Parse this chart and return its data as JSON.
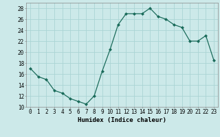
{
  "x": [
    0,
    1,
    2,
    3,
    4,
    5,
    6,
    7,
    8,
    9,
    10,
    11,
    12,
    13,
    14,
    15,
    16,
    17,
    18,
    19,
    20,
    21,
    22,
    23
  ],
  "y": [
    17,
    15.5,
    15,
    13,
    12.5,
    11.5,
    11,
    10.5,
    12,
    16.5,
    20.5,
    25,
    27,
    27,
    27,
    28,
    26.5,
    26,
    25,
    24.5,
    22,
    22,
    23,
    18.5
  ],
  "line_color": "#1a6b5a",
  "marker": "D",
  "marker_size": 2.0,
  "bg_color": "#cce9e9",
  "grid_color": "#aad4d4",
  "xlabel": "Humidex (Indice chaleur)",
  "xlim": [
    -0.5,
    23.5
  ],
  "ylim": [
    10,
    29
  ],
  "yticks": [
    10,
    12,
    14,
    16,
    18,
    20,
    22,
    24,
    26,
    28
  ],
  "xticks": [
    0,
    1,
    2,
    3,
    4,
    5,
    6,
    7,
    8,
    9,
    10,
    11,
    12,
    13,
    14,
    15,
    16,
    17,
    18,
    19,
    20,
    21,
    22,
    23
  ],
  "label_fontsize": 6.5,
  "tick_fontsize": 5.5
}
